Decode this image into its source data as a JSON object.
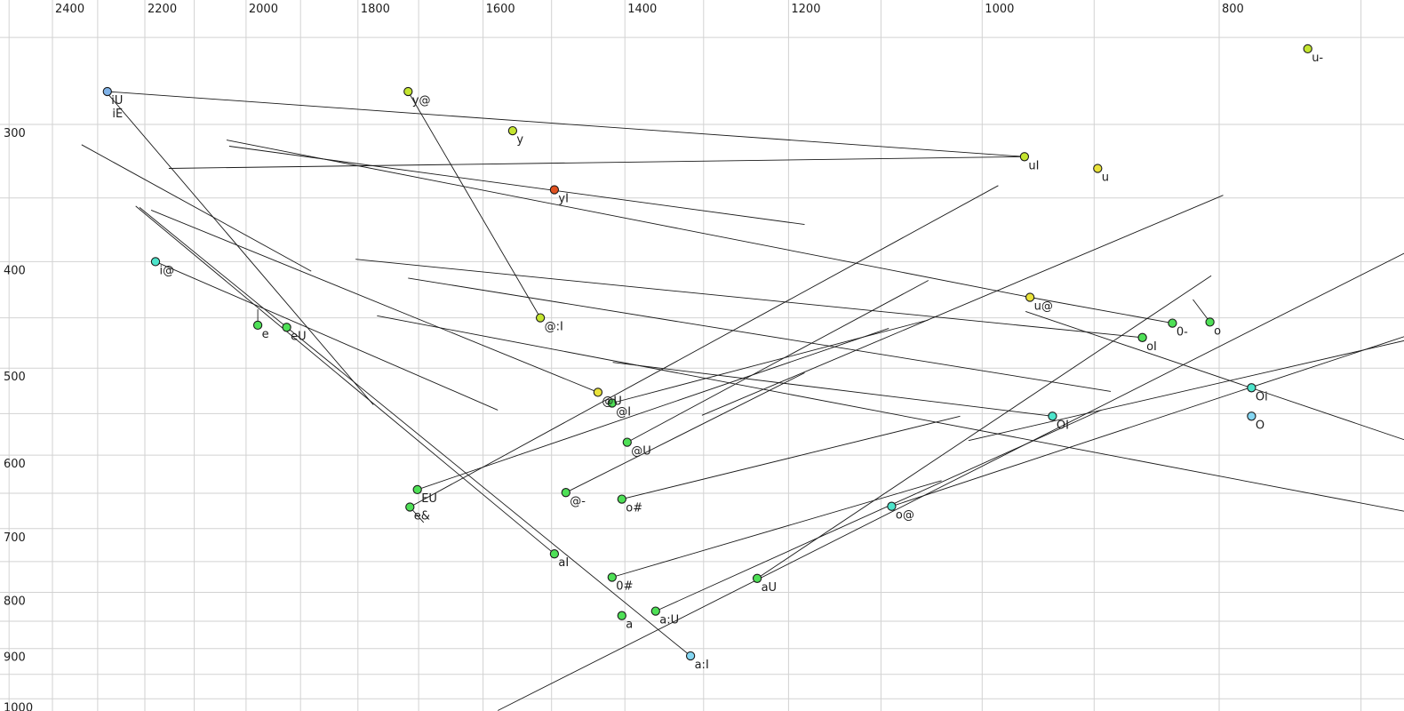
{
  "chart_data": {
    "type": "scatter",
    "title": "",
    "xlabel": "",
    "ylabel": "",
    "x_axis": {
      "unit": "Hz",
      "scale": "log",
      "reversed": true,
      "tick_labels": [
        "2400",
        "2200",
        "2000",
        "1800",
        "1600",
        "1400",
        "1200",
        "1000",
        "800"
      ],
      "tick_values": [
        2400,
        2200,
        2000,
        1800,
        1600,
        1400,
        1200,
        1000,
        800
      ],
      "grid_values": [
        2500,
        2400,
        2300,
        2200,
        2100,
        2000,
        1900,
        1800,
        1700,
        1600,
        1500,
        1400,
        1300,
        1200,
        1100,
        1000,
        900,
        800,
        700
      ],
      "range": [
        2520,
        670
      ]
    },
    "y_axis": {
      "unit": "Hz",
      "scale": "log",
      "reversed": false,
      "tick_labels": [
        "300",
        "400",
        "500",
        "600",
        "700",
        "800",
        "900",
        "1000"
      ],
      "tick_values": [
        300,
        400,
        500,
        600,
        700,
        800,
        900,
        1000
      ],
      "grid_values": [
        250,
        300,
        350,
        400,
        450,
        500,
        550,
        600,
        650,
        700,
        750,
        800,
        850,
        900,
        950,
        1000
      ],
      "range": [
        240,
        1030
      ]
    },
    "legend": null,
    "grid": true,
    "colors": {
      "blue": "#7fb2e8",
      "skyblue": "#84d6f2",
      "turquoise": "#4de4cb",
      "green": "#4ee056",
      "yellowgreen": "#c4e52f",
      "yellow": "#e9e23a",
      "red": "#e0501e"
    },
    "points": [
      {
        "label": "iU",
        "f2": 2279,
        "f1": 280,
        "color": "blue"
      },
      {
        "label": "y@",
        "f2": 1717,
        "f1": 280,
        "color": "yellowgreen"
      },
      {
        "label": "y",
        "f2": 1556,
        "f1": 304,
        "color": "yellowgreen"
      },
      {
        "label": "u-",
        "f2": 736,
        "f1": 256,
        "color": "yellowgreen"
      },
      {
        "label": "uI",
        "f2": 961,
        "f1": 321,
        "color": "yellowgreen"
      },
      {
        "label": "u",
        "f2": 897,
        "f1": 329,
        "color": "yellow"
      },
      {
        "label": "yI",
        "f2": 1496,
        "f1": 344,
        "color": "red"
      },
      {
        "label": "i@",
        "f2": 2178,
        "f1": 400,
        "color": "turquoise"
      },
      {
        "label": "u@",
        "f2": 956,
        "f1": 431,
        "color": "yellow"
      },
      {
        "label": "@:I",
        "f2": 1516,
        "f1": 450,
        "color": "yellowgreen"
      },
      {
        "label": "o",
        "f2": 807,
        "f1": 454,
        "color": "green"
      },
      {
        "label": "0-",
        "f2": 836,
        "f1": 455,
        "color": "green"
      },
      {
        "label": "e",
        "f2": 1978,
        "f1": 457,
        "color": "green"
      },
      {
        "label": "eU",
        "f2": 1925,
        "f1": 459,
        "color": "green"
      },
      {
        "label": "oI",
        "f2": 860,
        "f1": 469,
        "color": "green"
      },
      {
        "label": "@U",
        "f2": 1436,
        "f1": 526,
        "color": "yellow"
      },
      {
        "label": "Oi",
        "f2": 776,
        "f1": 521,
        "color": "turquoise"
      },
      {
        "label": "@I",
        "f2": 1417,
        "f1": 538,
        "color": "green"
      },
      {
        "label": "OI",
        "f2": 936,
        "f1": 553,
        "color": "turquoise"
      },
      {
        "label": "O",
        "f2": 776,
        "f1": 553,
        "color": "skyblue"
      },
      {
        "label": "@U",
        "f2": 1397,
        "f1": 584,
        "color": "green"
      },
      {
        "label": "EU",
        "f2": 1702,
        "f1": 645,
        "color": "green"
      },
      {
        "label": "@-",
        "f2": 1480,
        "f1": 649,
        "color": "green"
      },
      {
        "label": "o#",
        "f2": 1404,
        "f1": 658,
        "color": "green"
      },
      {
        "label": "e&",
        "f2": 1714,
        "f1": 669,
        "color": "green"
      },
      {
        "label": "o@",
        "f2": 1089,
        "f1": 668,
        "color": "turquoise"
      },
      {
        "label": "aI",
        "f2": 1496,
        "f1": 738,
        "color": "green"
      },
      {
        "label": "0#",
        "f2": 1417,
        "f1": 775,
        "color": "green"
      },
      {
        "label": "aU",
        "f2": 1236,
        "f1": 777,
        "color": "green"
      },
      {
        "label": "a:U",
        "f2": 1360,
        "f1": 832,
        "color": "green"
      },
      {
        "label": "a",
        "f2": 1404,
        "f1": 840,
        "color": "green"
      },
      {
        "label": "a:I",
        "f2": 1316,
        "f1": 914,
        "color": "skyblue"
      }
    ],
    "extra_labels": [
      {
        "label": "iE",
        "f2": 2277,
        "f1": 288
      }
    ],
    "segments": [
      {
        "from": [
          2279,
          280
        ],
        "to": [
          961,
          321
        ]
      },
      {
        "from": [
          2151,
          329
        ],
        "to": [
          961,
          321
        ]
      },
      {
        "from": [
          2037,
          310
        ],
        "to": [
          956,
          431
        ]
      },
      {
        "from": [
          2032,
          314
        ],
        "to": [
          1182,
          370
        ]
      },
      {
        "from": [
          2219,
          356
        ],
        "to": [
          1496,
          738
        ]
      },
      {
        "from": [
          2211,
          357
        ],
        "to": [
          1316,
          914
        ]
      },
      {
        "from": [
          2187,
          359
        ],
        "to": [
          1436,
          526
        ]
      },
      {
        "from": [
          2279,
          281
        ],
        "to": [
          1774,
          540
        ]
      },
      {
        "from": [
          2335,
          313
        ],
        "to": [
          1881,
          408
        ]
      },
      {
        "from": [
          2178,
          400
        ],
        "to": [
          1578,
          546
        ]
      },
      {
        "from": [
          1717,
          280
        ],
        "to": [
          1516,
          450
        ]
      },
      {
        "from": [
          1978,
          442
        ],
        "to": [
          1978,
          457
        ]
      },
      {
        "from": [
          956,
          431
        ],
        "to": [
          836,
          455
        ]
      },
      {
        "from": [
          1804,
          398
        ],
        "to": [
          860,
          469
        ]
      },
      {
        "from": [
          820,
          433
        ],
        "to": [
          807,
          454
        ]
      },
      {
        "from": [
          1416,
          494
        ],
        "to": [
          936,
          553
        ]
      },
      {
        "from": [
          1404,
          658
        ],
        "to": [
          1021,
          553
        ]
      },
      {
        "from": [
          1417,
          775
        ],
        "to": [
          1039,
          633
        ]
      },
      {
        "from": [
          1714,
          669
        ],
        "to": [
          985,
          341
        ]
      },
      {
        "from": [
          1702,
          645
        ],
        "to": [
          1092,
          460
        ]
      },
      {
        "from": [
          1480,
          649
        ],
        "to": [
          1182,
          505
        ]
      },
      {
        "from": [
          1397,
          584
        ],
        "to": [
          1052,
          416
        ]
      },
      {
        "from": [
          1360,
          832
        ],
        "to": [
          894,
          546
        ]
      },
      {
        "from": [
          1236,
          777
        ],
        "to": [
          806,
          412
        ]
      },
      {
        "from": [
          1089,
          668
        ],
        "to": [
          672,
          468
        ]
      },
      {
        "from": [
          1578,
          1025
        ],
        "to": [
          672,
          393
        ]
      },
      {
        "from": [
          1302,
          552
        ],
        "to": [
          797,
          348
        ]
      },
      {
        "from": [
          1768,
          448
        ],
        "to": [
          672,
          675
        ]
      },
      {
        "from": [
          960,
          444
        ],
        "to": [
          672,
          581
        ]
      },
      {
        "from": [
          1013,
          582
        ],
        "to": [
          672,
          472
        ]
      },
      {
        "from": [
          1714,
          669
        ],
        "to": [
          1692,
          691
        ]
      },
      {
        "from": [
          1717,
          414
        ],
        "to": [
          886,
          525
        ]
      },
      {
        "from": [
          1417,
          538
        ],
        "to": [
          1052,
          452
        ]
      }
    ]
  }
}
